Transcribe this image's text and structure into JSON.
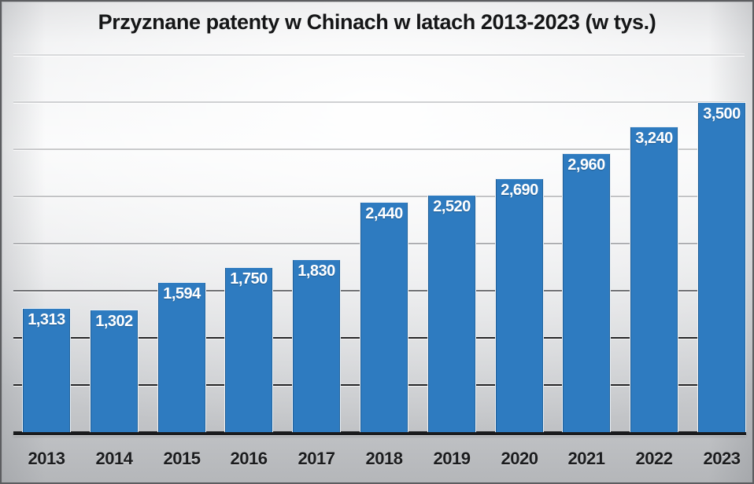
{
  "chart_data": {
    "type": "bar",
    "title": "Przyznane patenty w Chinach w latach 2013-2023 (w tys.)",
    "categories": [
      "2013",
      "2014",
      "2015",
      "2016",
      "2017",
      "2018",
      "2019",
      "2020",
      "2021",
      "2022",
      "2023"
    ],
    "values": [
      1313,
      1302,
      1594,
      1750,
      1830,
      2440,
      2520,
      2690,
      2960,
      3240,
      3500
    ],
    "value_labels": [
      "1,313",
      "1,302",
      "1,594",
      "1,750",
      "1,830",
      "2,440",
      "2,520",
      "2,690",
      "2,960",
      "3,240",
      "3,500"
    ],
    "xlabel": "",
    "ylabel": "",
    "ylim": [
      0,
      4000
    ],
    "gridline_step": 500,
    "y_tick_labels_visible": false,
    "grid": "horizontal",
    "legend_position": "none",
    "bar_color": "#2e7bc0",
    "bar_label_color": "#ffffff",
    "axis_color": "#1a1b1d",
    "category_label_color": "#1b1c1e"
  }
}
